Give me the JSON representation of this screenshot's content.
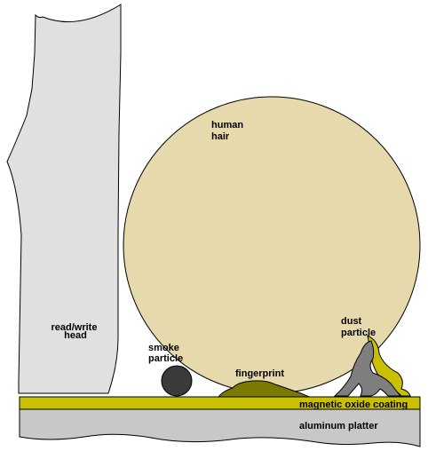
{
  "labels": {
    "read_write_head": [
      "read/write",
      "head"
    ],
    "human_hair": [
      "human",
      "hair"
    ],
    "smoke_particle": [
      "smoke",
      "particle"
    ],
    "dust_particle": [
      "dust",
      "particle"
    ],
    "fingerprint": "fingerprint",
    "magnetic_oxide_coating": "magnetic oxide coating",
    "aluminum_platter": "aluminum platter"
  },
  "colors": {
    "head_fill": "#e0e0e0",
    "hair_fill": "#e6d9ab",
    "smoke_fill": "#3a3a3a",
    "fingerprint_fill": "#7a7a00",
    "dust_fill": "#7f7f7f",
    "dust_highlight": "#c8c000",
    "coating_fill": "#c8c000",
    "platter_fill": "#c8c8c8",
    "outline": "#000000"
  }
}
